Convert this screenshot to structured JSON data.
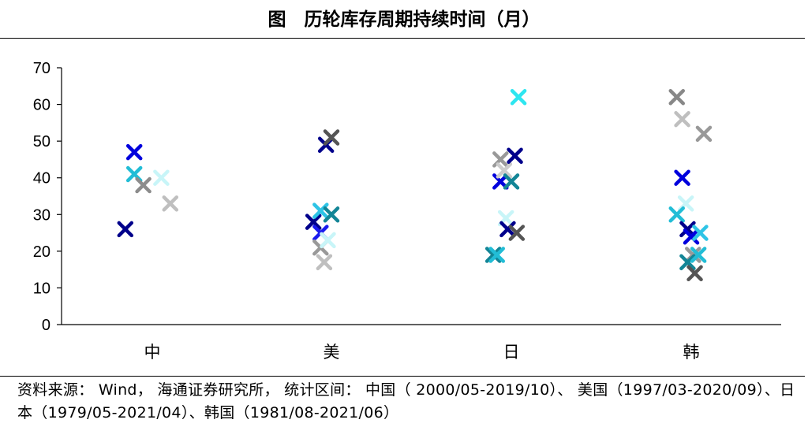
{
  "header": {
    "title": "图　历轮库存周期持续时间（月）"
  },
  "chart_data": {
    "type": "scatter",
    "categories": [
      "中",
      "美",
      "日",
      "韩"
    ],
    "ylim": [
      0,
      70
    ],
    "yticks": [
      0,
      10,
      20,
      30,
      40,
      50,
      60,
      70
    ],
    "grid": false,
    "legend": "none",
    "points": [
      {
        "category": "中",
        "offset": -0.15,
        "y": 26,
        "color": "#00008b"
      },
      {
        "category": "中",
        "offset": -0.1,
        "y": 47,
        "color": "#0000dd"
      },
      {
        "category": "中",
        "offset": -0.1,
        "y": 41,
        "color": "#22bdd6"
      },
      {
        "category": "中",
        "offset": -0.05,
        "y": 38,
        "color": "#8c8c8c"
      },
      {
        "category": "中",
        "offset": 0.05,
        "y": 40,
        "color": "#c8f5f8"
      },
      {
        "category": "中",
        "offset": 0.1,
        "y": 33,
        "color": "#bfbfbf"
      },
      {
        "category": "美",
        "offset": -0.1,
        "y": 28,
        "color": "#00008b"
      },
      {
        "category": "美",
        "offset": -0.06,
        "y": 31,
        "color": "#2ec4e6"
      },
      {
        "category": "美",
        "offset": -0.06,
        "y": 25,
        "color": "#1a1aee"
      },
      {
        "category": "美",
        "offset": -0.06,
        "y": 21,
        "color": "#999999"
      },
      {
        "category": "美",
        "offset": -0.02,
        "y": 23,
        "color": "#c8f5f8"
      },
      {
        "category": "美",
        "offset": -0.04,
        "y": 17,
        "color": "#bfbfbf"
      },
      {
        "category": "美",
        "offset": -0.03,
        "y": 49,
        "color": "#00008b"
      },
      {
        "category": "美",
        "offset": 0.0,
        "y": 51,
        "color": "#555555"
      },
      {
        "category": "美",
        "offset": 0.0,
        "y": 30,
        "color": "#138596"
      },
      {
        "category": "日",
        "offset": -0.1,
        "y": 19,
        "color": "#138596"
      },
      {
        "category": "日",
        "offset": -0.08,
        "y": 19,
        "color": "#22bdd6"
      },
      {
        "category": "日",
        "offset": -0.06,
        "y": 39,
        "color": "#0000dd"
      },
      {
        "category": "日",
        "offset": -0.06,
        "y": 45,
        "color": "#999999"
      },
      {
        "category": "日",
        "offset": -0.04,
        "y": 42,
        "color": "#cccccc"
      },
      {
        "category": "日",
        "offset": -0.03,
        "y": 29,
        "color": "#c8f5f8"
      },
      {
        "category": "日",
        "offset": -0.02,
        "y": 26,
        "color": "#00008b"
      },
      {
        "category": "日",
        "offset": 0.0,
        "y": 39,
        "color": "#138596"
      },
      {
        "category": "日",
        "offset": 0.02,
        "y": 46,
        "color": "#00008b"
      },
      {
        "category": "日",
        "offset": 0.03,
        "y": 25,
        "color": "#555555"
      },
      {
        "category": "日",
        "offset": 0.04,
        "y": 62,
        "color": "#2ee6f0"
      },
      {
        "category": "韩",
        "offset": -0.08,
        "y": 62,
        "color": "#888888"
      },
      {
        "category": "韩",
        "offset": -0.05,
        "y": 56,
        "color": "#bfbfbf"
      },
      {
        "category": "韩",
        "offset": 0.07,
        "y": 52,
        "color": "#999999"
      },
      {
        "category": "韩",
        "offset": -0.05,
        "y": 40,
        "color": "#0000dd"
      },
      {
        "category": "韩",
        "offset": -0.03,
        "y": 33,
        "color": "#c8f5f8"
      },
      {
        "category": "韩",
        "offset": -0.08,
        "y": 30,
        "color": "#22bdd6"
      },
      {
        "category": "韩",
        "offset": -0.02,
        "y": 26,
        "color": "#00008b"
      },
      {
        "category": "韩",
        "offset": 0.0,
        "y": 24,
        "color": "#0000dd"
      },
      {
        "category": "韩",
        "offset": 0.05,
        "y": 25,
        "color": "#2ec4e6"
      },
      {
        "category": "韩",
        "offset": 0.01,
        "y": 19,
        "color": "#999999"
      },
      {
        "category": "韩",
        "offset": -0.02,
        "y": 17,
        "color": "#138596"
      },
      {
        "category": "韩",
        "offset": 0.04,
        "y": 19,
        "color": "#22bdd6"
      },
      {
        "category": "韩",
        "offset": 0.02,
        "y": 14,
        "color": "#555555"
      }
    ]
  },
  "footer": {
    "source": "资料来源： Wind， 海通证券研究所， 统计区间： 中国（ 2000/05-2019/10）、 美国（1997/03-2020/09）、日本（1979/05-2021/04）、韩国（1981/08-2021/06）"
  }
}
